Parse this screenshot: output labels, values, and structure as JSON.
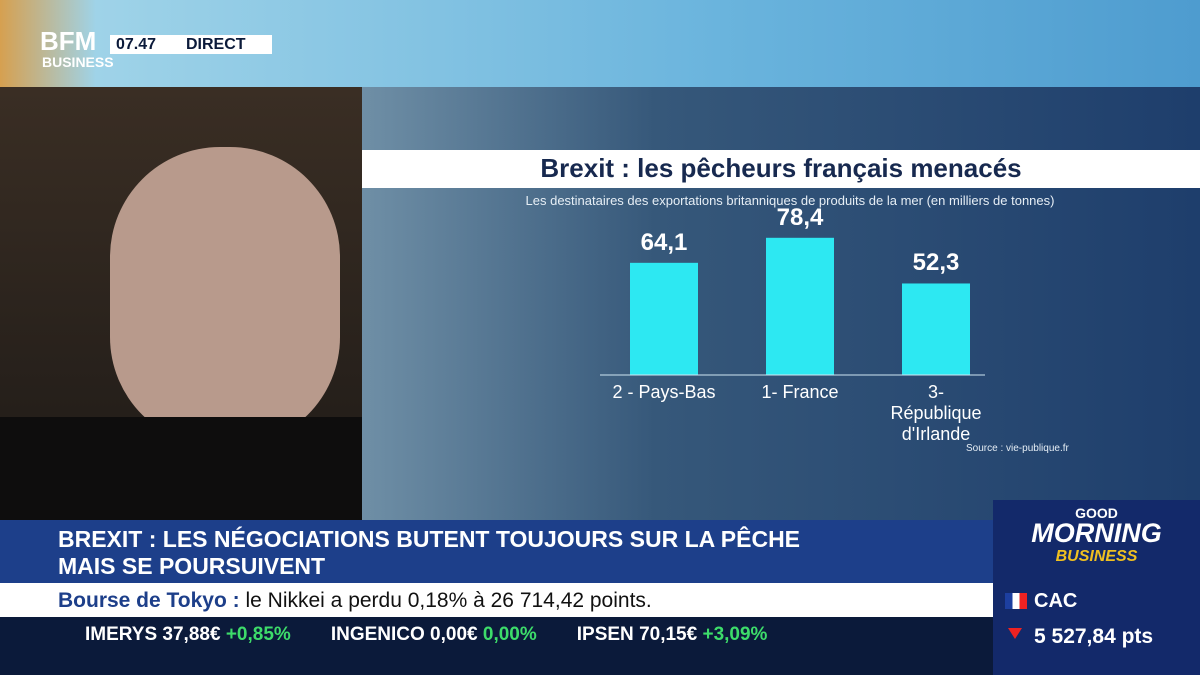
{
  "header": {
    "logo": "BFM",
    "logo_sub": "BUSINESS",
    "time": "07.47",
    "live": "DIRECT"
  },
  "chart": {
    "type": "bar",
    "title": "Brexit : les pêcheurs français menacés",
    "subtitle": "Les destinataires des exportations britanniques de produits de la mer (en milliers de tonnes)",
    "categories": [
      "2 - Pays-Bas",
      "1- France",
      "3- République d'Irlande"
    ],
    "values": [
      64.1,
      78.4,
      52.3
    ],
    "value_labels": [
      "64,1",
      "78,4",
      "52,3"
    ],
    "color": "#2de8f2",
    "source": "Source : vie-publique.fr"
  },
  "headline": {
    "lines": [
      "BREXIT : LES NÉGOCIATIONS BUTENT TOUJOURS SUR LA PÊCHE",
      "MAIS SE POURSUIVENT"
    ]
  },
  "ticker": {
    "label": "Bourse de Tokyo :",
    "text": "le Nikkei a perdu 0,18% à 26 714,42 points."
  },
  "stocks": [
    {
      "name": "IMERYS",
      "price": "37,88€",
      "change": "+0,85%"
    },
    {
      "name": "INGENICO",
      "price": "0,00€",
      "change": "0,00%"
    },
    {
      "name": "IPSEN",
      "price": "70,15€",
      "change": "+3,09%"
    }
  ],
  "show": {
    "line1": "GOOD",
    "line2": "MORNING",
    "line3": "BUSINESS"
  },
  "index": {
    "name": "CAC",
    "value": "5 527,84 pts"
  }
}
